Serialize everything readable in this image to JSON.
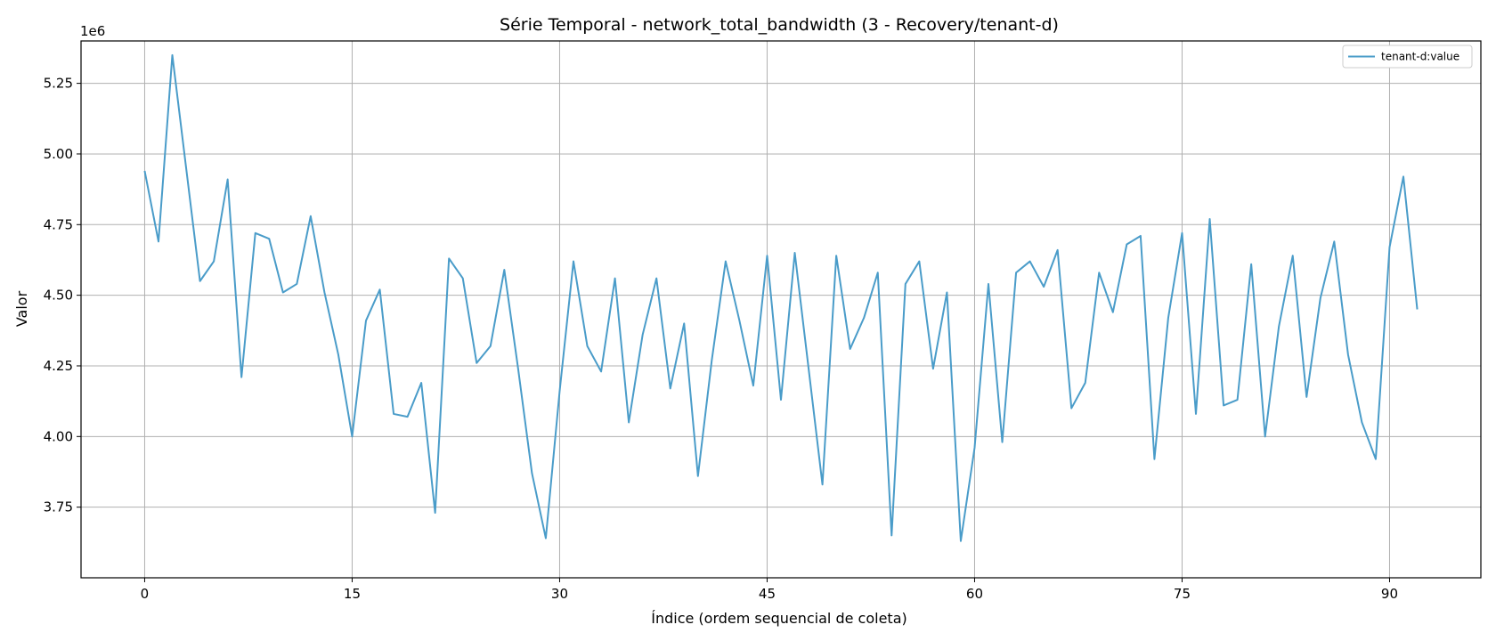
{
  "chart_data": {
    "type": "line",
    "title": "Série Temporal - network_total_bandwidth (3 - Recovery/tenant-d)",
    "xlabel": "Índice (ordem sequencial de coleta)",
    "ylabel": "Valor",
    "y_offset_label": "1e6",
    "xlim": [
      -4.6,
      96.6
    ],
    "ylim": [
      3.5,
      5.4
    ],
    "x_ticks": [
      0,
      15,
      30,
      45,
      60,
      75,
      90
    ],
    "x_tick_labels": [
      "0",
      "15",
      "30",
      "45",
      "60",
      "75",
      "90"
    ],
    "y_ticks": [
      3.75,
      4.0,
      4.25,
      4.5,
      4.75,
      5.0,
      5.25
    ],
    "y_tick_labels": [
      "3.75",
      "4.00",
      "4.25",
      "4.50",
      "4.75",
      "5.00",
      "5.25"
    ],
    "grid": true,
    "legend_position": "top-right",
    "series": [
      {
        "name": "tenant-d:value",
        "color": "#4a9cc9",
        "values": [
          4.94,
          4.69,
          5.35,
          4.95,
          4.55,
          4.62,
          4.91,
          4.21,
          4.72,
          4.7,
          4.51,
          4.54,
          4.78,
          4.51,
          4.29,
          4.0,
          4.41,
          4.52,
          4.08,
          4.07,
          4.19,
          3.73,
          4.63,
          4.56,
          4.26,
          4.32,
          4.59,
          4.24,
          3.87,
          3.64,
          4.16,
          4.62,
          4.32,
          4.23,
          4.56,
          4.05,
          4.36,
          4.56,
          4.17,
          4.4,
          3.86,
          4.27,
          4.62,
          4.41,
          4.18,
          4.64,
          4.13,
          4.65,
          4.24,
          3.83,
          4.64,
          4.31,
          4.42,
          4.58,
          3.65,
          4.54,
          4.62,
          4.24,
          4.51,
          3.63,
          3.96,
          4.54,
          3.98,
          4.58,
          4.62,
          4.53,
          4.66,
          4.1,
          4.19,
          4.58,
          4.44,
          4.68,
          4.71,
          3.92,
          4.42,
          4.72,
          4.08,
          4.77,
          4.11,
          4.13,
          4.61,
          4.0,
          4.39,
          4.64,
          4.14,
          4.49,
          4.69,
          4.29,
          4.05,
          3.92,
          4.67,
          4.92,
          4.45
        ]
      }
    ]
  }
}
